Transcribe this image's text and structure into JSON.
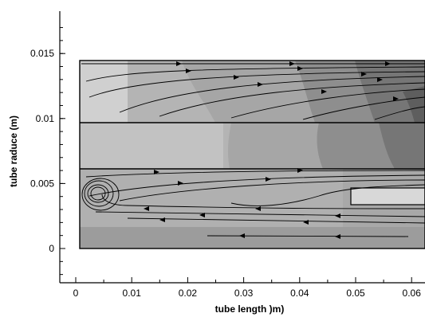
{
  "chart_data": {
    "type": "contour-streamline",
    "title": "",
    "xlabel": "tube length )m)",
    "ylabel": "tube raduce (m)",
    "xlim": [
      -0.0025,
      0.0625
    ],
    "ylim": [
      -0.0027,
      0.0183
    ],
    "x_ticks": [
      {
        "value": 0,
        "label": "0"
      },
      {
        "value": 0.01,
        "label": "0.01"
      },
      {
        "value": 0.02,
        "label": "0.02"
      },
      {
        "value": 0.03,
        "label": "0.03"
      },
      {
        "value": 0.04,
        "label": "0.04"
      },
      {
        "value": 0.05,
        "label": "0.05"
      },
      {
        "value": 0.06,
        "label": "0.06"
      }
    ],
    "y_ticks": [
      {
        "value": 0,
        "label": "0"
      },
      {
        "value": 0.005,
        "label": "0.005"
      },
      {
        "value": 0.01,
        "label": "0.01"
      },
      {
        "value": 0.015,
        "label": "0.015"
      }
    ],
    "regions": {
      "domain": {
        "x": [
          0.0005,
          0.0625
        ],
        "y": [
          0,
          0.0143
        ]
      },
      "wall_boundaries_y": [
        0.0097,
        0.0062
      ],
      "insert": {
        "x": [
          0.049,
          0.0625
        ],
        "y": [
          0.0034,
          0.0054
        ]
      },
      "recirculation_center": [
        0.0037,
        0.0042
      ]
    },
    "contour_colors": [
      "#5e5e5e",
      "#808080",
      "#9c9c9c",
      "#b6b6b6",
      "#cacaca",
      "#d8d8d8"
    ]
  }
}
